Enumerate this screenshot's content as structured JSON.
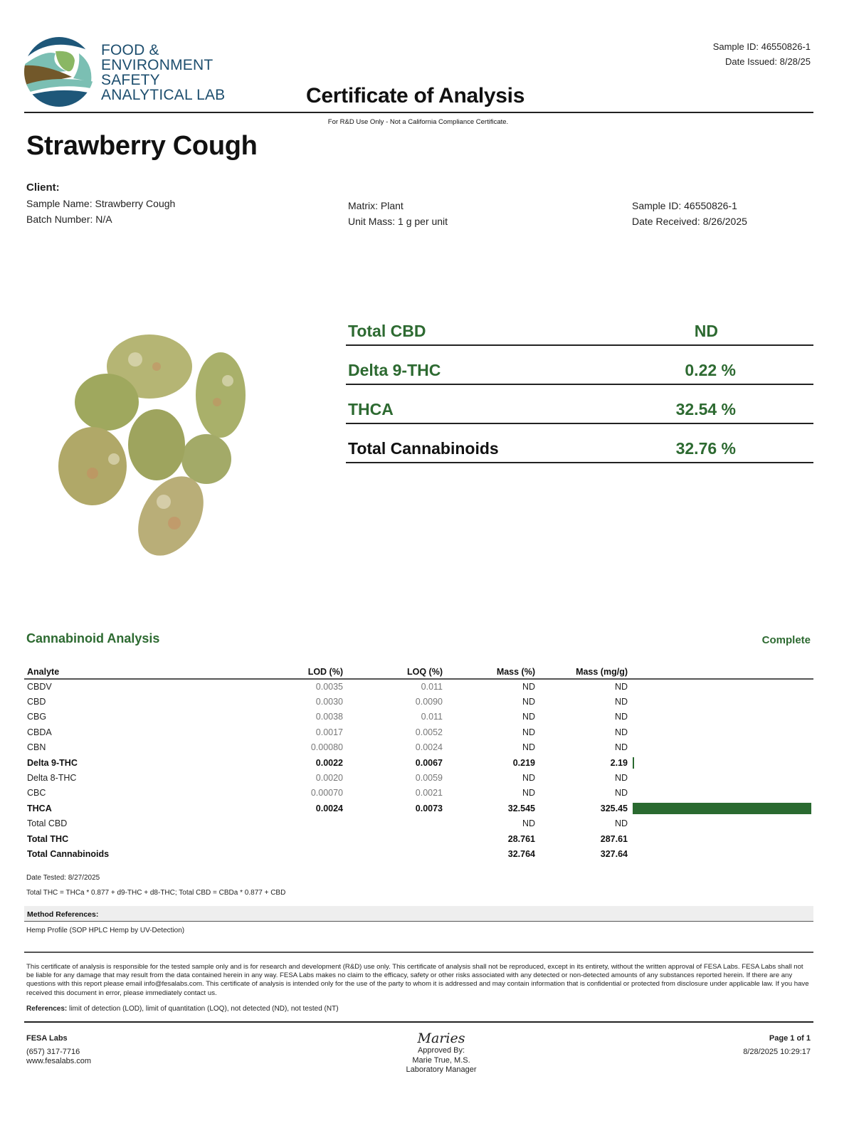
{
  "header": {
    "logo_lines": [
      "FOOD &",
      "ENVIRONMENT",
      "SAFETY",
      "ANALYTICAL LAB"
    ],
    "sample_id": "Sample ID: 46550826-1",
    "date_issued": "Date Issued: 8/28/25",
    "title": "Certificate of Analysis",
    "subtitle": "For R&D Use Only - Not a California Compliance Certificate."
  },
  "product_name": "Strawberry Cough",
  "client": {
    "label": "Client:",
    "sample_name": "Sample Name: Strawberry Cough",
    "batch_number": "Batch Number: N/A",
    "matrix": "Matrix: Plant",
    "unit_mass": "Unit Mass: 1 g per unit",
    "sample_id": "Sample ID: 46550826-1",
    "date_received": "Date Received: 8/26/2025"
  },
  "summary": [
    {
      "label": "Total CBD",
      "value": "ND"
    },
    {
      "label": "Delta 9-THC",
      "value": "0.22 %"
    },
    {
      "label": "THCA",
      "value": "32.54 %"
    },
    {
      "label": "Total Cannabinoids",
      "value": "32.76 %"
    }
  ],
  "analysis": {
    "title": "Cannabinoid Analysis",
    "status": "Complete",
    "columns": [
      "Analyte",
      "LOD (%)",
      "LOQ (%)",
      "Mass (%)",
      "Mass (mg/g)"
    ],
    "rows": [
      {
        "analyte": "CBDV",
        "lod": "0.0035",
        "loq": "0.011",
        "mass_pct": "ND",
        "mass_mg": "ND",
        "bold": false,
        "bar": 0
      },
      {
        "analyte": "CBD",
        "lod": "0.0030",
        "loq": "0.0090",
        "mass_pct": "ND",
        "mass_mg": "ND",
        "bold": false,
        "bar": 0
      },
      {
        "analyte": "CBG",
        "lod": "0.0038",
        "loq": "0.011",
        "mass_pct": "ND",
        "mass_mg": "ND",
        "bold": false,
        "bar": 0
      },
      {
        "analyte": "CBDA",
        "lod": "0.0017",
        "loq": "0.0052",
        "mass_pct": "ND",
        "mass_mg": "ND",
        "bold": false,
        "bar": 0
      },
      {
        "analyte": "CBN",
        "lod": "0.00080",
        "loq": "0.0024",
        "mass_pct": "ND",
        "mass_mg": "ND",
        "bold": false,
        "bar": 0
      },
      {
        "analyte": "Delta 9-THC",
        "lod": "0.0022",
        "loq": "0.0067",
        "mass_pct": "0.219",
        "mass_mg": "2.19",
        "bold": true,
        "bar": 2.19
      },
      {
        "analyte": "Delta 8-THC",
        "lod": "0.0020",
        "loq": "0.0059",
        "mass_pct": "ND",
        "mass_mg": "ND",
        "bold": false,
        "bar": 0
      },
      {
        "analyte": "CBC",
        "lod": "0.00070",
        "loq": "0.0021",
        "mass_pct": "ND",
        "mass_mg": "ND",
        "bold": false,
        "bar": 0
      },
      {
        "analyte": "THCA",
        "lod": "0.0024",
        "loq": "0.0073",
        "mass_pct": "32.545",
        "mass_mg": "325.45",
        "bold": true,
        "bar": 325.45
      },
      {
        "analyte": "Total CBD",
        "lod": "",
        "loq": "",
        "mass_pct": "ND",
        "mass_mg": "ND",
        "bold": false,
        "bar": 0
      },
      {
        "analyte": "Total THC",
        "lod": "",
        "loq": "",
        "mass_pct": "28.761",
        "mass_mg": "287.61",
        "bold": true,
        "bar": 0
      },
      {
        "analyte": "Total Cannabinoids",
        "lod": "",
        "loq": "",
        "mass_pct": "32.764",
        "mass_mg": "327.64",
        "bold": true,
        "bar": 0
      }
    ],
    "bar_color": "#2a6a30",
    "date_tested": "Date Tested: 8/27/2025",
    "formula": "Total THC = THCa * 0.877 + d9-THC + d8-THC; Total CBD = CBDa * 0.877 + CBD"
  },
  "method": {
    "label": "Method References:",
    "value": "Hemp Profile (SOP HPLC Hemp by UV-Detection)"
  },
  "disclaimer": "This certificate of analysis is responsible for the tested sample only and is for research and development (R&D) use only. This certificate of analysis shall not be reproduced, except in its entirety, without the written approval of FESA Labs. FESA Labs shall not be liable for any damage that may result from the data contained herein in any way. FESA Labs makes no claim to the efficacy, safety or other risks associated with any detected or non-detected amounts of any substances reported herein. If there are any questions with this report please email info@fesalabs.com. This certificate of analysis is intended only for the use of the party to whom it is addressed and may contain information that is confidential or protected from disclosure under applicable law. If you have received this document in error, please immediately contact us.",
  "references": {
    "label": "References:",
    "value": " limit of detection (LOD), limit of quantitation (LOQ), not detected (ND), not tested (NT)"
  },
  "footer": {
    "company": "FESA Labs",
    "phone": "(657) 317-7716",
    "website": "www.fesalabs.com",
    "signature": "Maries",
    "approved_by": "Approved By:",
    "approver": "Marie True, M.S.",
    "approver_title": "Laboratory Manager",
    "page": "Page 1 of 1",
    "timestamp": "8/28/2025 10:29:17"
  }
}
